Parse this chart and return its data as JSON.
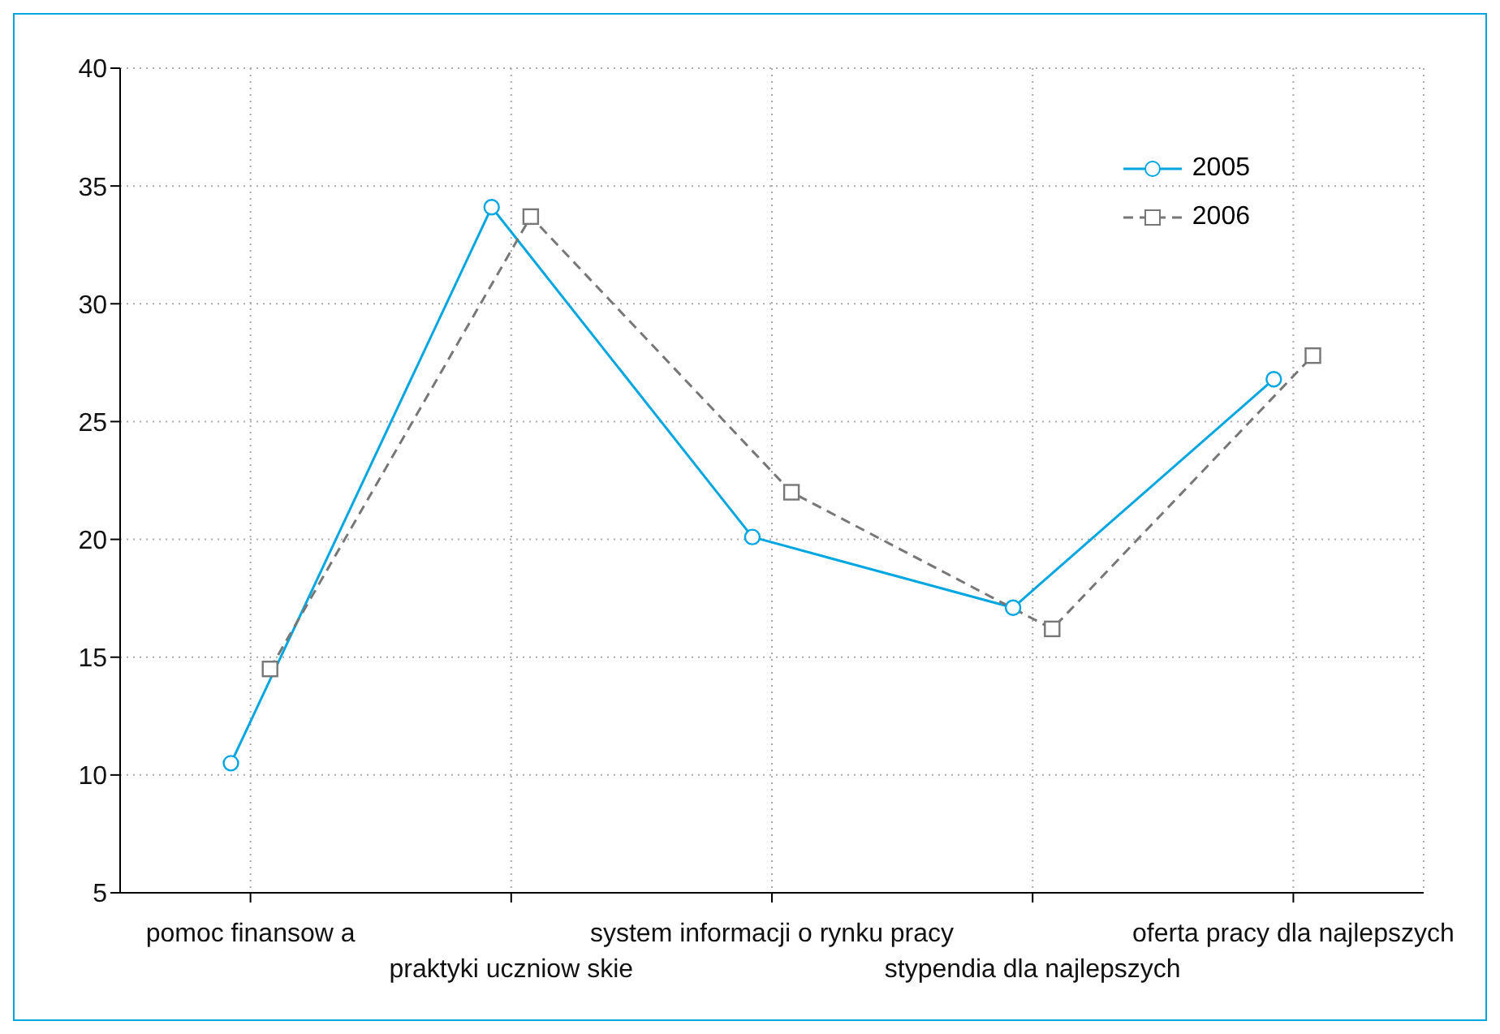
{
  "chart_data": {
    "type": "line",
    "categories": [
      "pomoc finansow a",
      "praktyki uczniow skie",
      "system informacji o rynku pracy",
      "stypendia dla najlepszych",
      "oferta pracy dla najlepszych"
    ],
    "series": [
      {
        "name": "2005",
        "color": "#00a6e0",
        "marker": "circle",
        "line_style": "solid",
        "values": [
          10.5,
          34.1,
          20.1,
          17.1,
          26.8
        ]
      },
      {
        "name": "2006",
        "color": "#777777",
        "marker": "square",
        "line_style": "dashed",
        "values": [
          14.5,
          33.7,
          22.0,
          16.2,
          27.8
        ]
      }
    ],
    "ylim": [
      5,
      40
    ],
    "yticks": [
      5,
      10,
      15,
      20,
      25,
      30,
      35,
      40
    ],
    "grid": true,
    "legend": "top right"
  }
}
